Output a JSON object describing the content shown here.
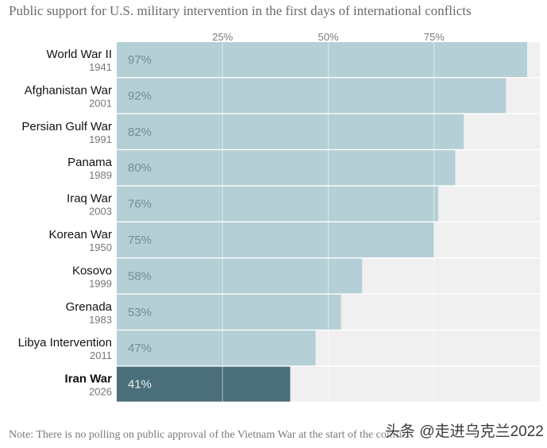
{
  "chart_data": {
    "type": "bar",
    "orientation": "horizontal",
    "title": "Public support for U.S. military intervention in the first days of international conflicts",
    "note": "Note: There is no polling on public approval of the Vietnam War at the start of the conflict.",
    "xlim": [
      0,
      100
    ],
    "xticks": [
      {
        "value": 25,
        "label": "25%"
      },
      {
        "value": 50,
        "label": "50%"
      },
      {
        "value": 75,
        "label": "75%"
      }
    ],
    "categories": [
      {
        "name": "World War II",
        "year": "1941",
        "value": 97,
        "label": "97%",
        "highlight": false
      },
      {
        "name": "Afghanistan War",
        "year": "2001",
        "value": 92,
        "label": "92%",
        "highlight": false
      },
      {
        "name": "Persian Gulf War",
        "year": "1991",
        "value": 82,
        "label": "82%",
        "highlight": false
      },
      {
        "name": "Panama",
        "year": "1989",
        "value": 80,
        "label": "80%",
        "highlight": false
      },
      {
        "name": "Iraq War",
        "year": "2003",
        "value": 76,
        "label": "76%",
        "highlight": false
      },
      {
        "name": "Korean War",
        "year": "1950",
        "value": 75,
        "label": "75%",
        "highlight": false
      },
      {
        "name": "Kosovo",
        "year": "1999",
        "value": 58,
        "label": "58%",
        "highlight": false
      },
      {
        "name": "Grenada",
        "year": "1983",
        "value": 53,
        "label": "53%",
        "highlight": false
      },
      {
        "name": "Libya Intervention",
        "year": "2011",
        "value": 47,
        "label": "47%",
        "highlight": false
      },
      {
        "name": "Iran War",
        "year": "2026",
        "value": 41,
        "label": "41%",
        "highlight": true
      }
    ],
    "colors": {
      "bar": "#b5cfd6",
      "highlight_bar": "#4a6f7b",
      "track": "#f0f0f0",
      "gridline": "#ffffff"
    }
  },
  "watermark": "头条 @走进乌克兰2022"
}
